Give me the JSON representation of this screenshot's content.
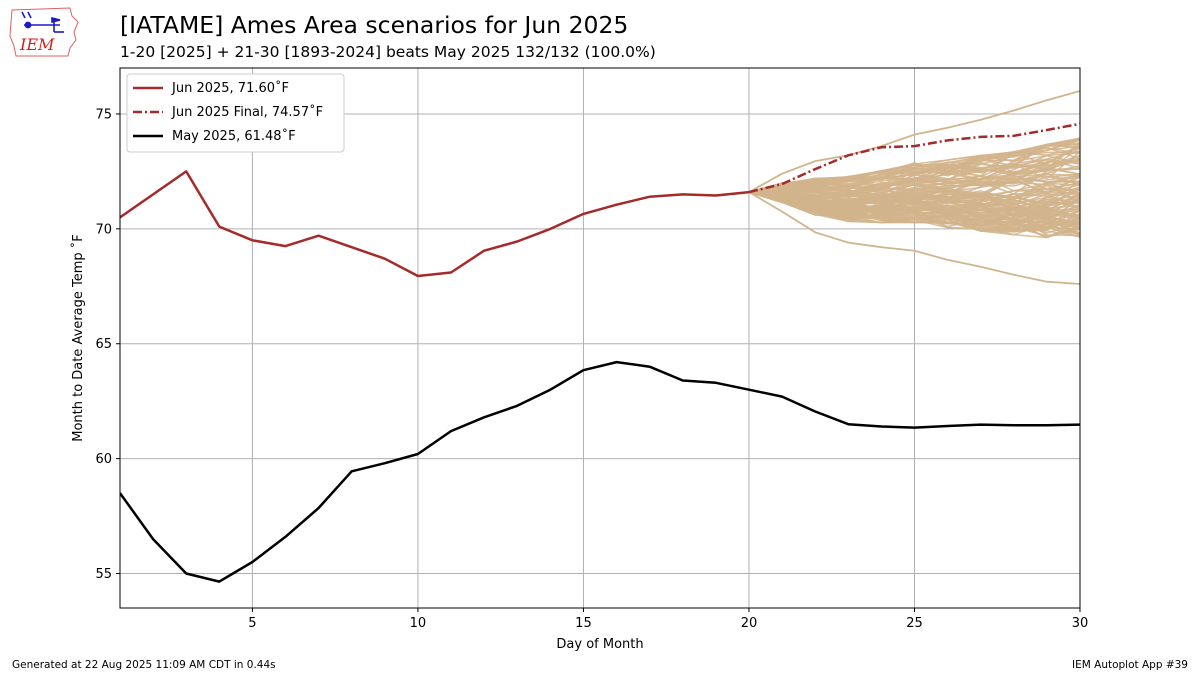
{
  "header": {
    "title": "[IATAME] Ames Area scenarios for Jun 2025",
    "subtitle": "1-20 [2025] + 21-30 [1893-2024] beats May 2025 132/132 (100.0%)",
    "logo_text": "IEM"
  },
  "footer": {
    "generated": "Generated at 22 Aug 2025 11:09 AM CDT in 0.44s",
    "app": "IEM Autoplot App #39"
  },
  "colors": {
    "current": "#a52a2a",
    "previous": "#000000",
    "scenario": "#d2b48c",
    "grid": "#b0b0b0"
  },
  "chart_data": {
    "type": "line",
    "xlabel": "Day of Month",
    "ylabel": "Month to Date Average Temp ˚F",
    "xlim": [
      1,
      30
    ],
    "ylim": [
      53.5,
      77
    ],
    "xticks": [
      5,
      10,
      15,
      20,
      25,
      30
    ],
    "yticks": [
      55,
      60,
      65,
      70,
      75
    ],
    "grid": true,
    "legend_position": "top-left",
    "legend": [
      {
        "label": "Jun 2025, 71.60˚F",
        "style": "solid",
        "color": "#a52a2a"
      },
      {
        "label": "Jun 2025 Final, 74.57˚F",
        "style": "dashdot",
        "color": "#a52a2a"
      },
      {
        "label": "May 2025, 61.48˚F",
        "style": "solid",
        "color": "#000000"
      }
    ],
    "series": [
      {
        "name": "Jun 2025",
        "x": [
          1,
          2,
          3,
          4,
          5,
          6,
          7,
          8,
          9,
          10,
          11,
          12,
          13,
          14,
          15,
          16,
          17,
          18,
          19,
          20
        ],
        "values": [
          70.5,
          71.5,
          72.5,
          70.1,
          69.5,
          69.25,
          69.7,
          69.2,
          68.7,
          67.95,
          68.1,
          69.05,
          69.45,
          70.0,
          70.65,
          71.05,
          71.4,
          71.5,
          71.45,
          71.6
        ]
      },
      {
        "name": "Jun 2025 Final",
        "x": [
          20,
          21,
          22,
          23,
          24,
          25,
          26,
          27,
          28,
          29,
          30
        ],
        "values": [
          71.6,
          71.95,
          72.6,
          73.2,
          73.55,
          73.6,
          73.85,
          74.0,
          74.05,
          74.3,
          74.57
        ]
      },
      {
        "name": "May 2025",
        "x": [
          1,
          2,
          3,
          4,
          5,
          6,
          7,
          8,
          9,
          10,
          11,
          12,
          13,
          14,
          15,
          16,
          17,
          18,
          19,
          20,
          21,
          22,
          23,
          24,
          25,
          26,
          27,
          28,
          29,
          30
        ],
        "values": [
          58.5,
          56.5,
          55.0,
          54.65,
          55.5,
          56.6,
          57.85,
          59.45,
          59.8,
          60.2,
          61.2,
          61.8,
          62.3,
          63.0,
          63.85,
          64.2,
          64.0,
          63.4,
          63.3,
          63.0,
          62.7,
          62.05,
          61.5,
          61.4,
          61.35,
          61.42,
          61.48,
          61.45,
          61.45,
          61.48
        ]
      }
    ],
    "scenario_count": 132,
    "scenario_start": [
      20,
      71.6
    ],
    "scenario_highest": {
      "x": [
        20,
        21,
        22,
        23,
        24,
        25,
        26,
        27,
        28,
        29,
        30
      ],
      "values": [
        71.6,
        72.4,
        72.95,
        73.2,
        73.6,
        74.1,
        74.4,
        74.75,
        75.15,
        75.6,
        76.0
      ]
    },
    "scenario_lowest": {
      "x": [
        20,
        21,
        22,
        23,
        24,
        25,
        26,
        27,
        28,
        29,
        30
      ],
      "values": [
        71.6,
        70.75,
        69.85,
        69.4,
        69.2,
        69.05,
        68.65,
        68.35,
        68.0,
        67.7,
        67.6
      ]
    }
  }
}
